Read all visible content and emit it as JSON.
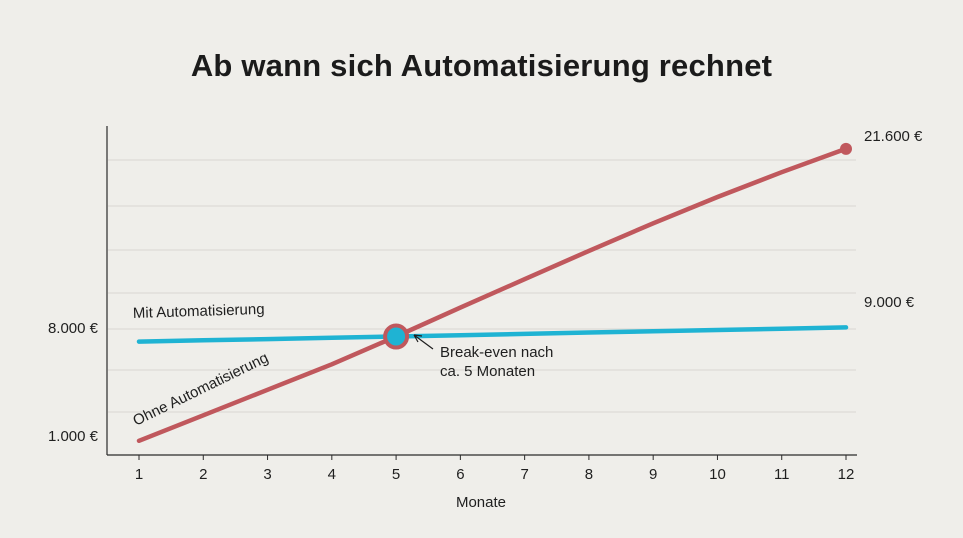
{
  "chart_data": {
    "type": "line",
    "title": "Ab wann sich Automatisierung rechnet",
    "xlabel": "Monate",
    "ylabel": "",
    "x": [
      1,
      2,
      3,
      4,
      5,
      6,
      7,
      8,
      9,
      10,
      11,
      12
    ],
    "xlim": [
      1,
      12
    ],
    "ylim": [
      0,
      23000
    ],
    "y_tick_labels": [
      "8.000 €",
      "1.000 €"
    ],
    "y_tick_values": [
      8000,
      1000
    ],
    "series": [
      {
        "name": "Mit Automatisierung",
        "color": "#1fb3d3",
        "values": [
          8000,
          8090,
          8180,
          8270,
          8360,
          8450,
          8545,
          8640,
          8730,
          8820,
          8910,
          9000
        ],
        "end_label": "9.000 €"
      },
      {
        "name": "Ohne Automatisierung",
        "color": "#c0585d",
        "values": [
          1000,
          2800,
          4600,
          6400,
          8360,
          10400,
          12400,
          14400,
          16350,
          18200,
          19950,
          21600
        ],
        "end_label": "21.600 €"
      }
    ],
    "annotation": {
      "x": 5,
      "y": 8360,
      "lines": [
        "Break-even nach",
        "ca. 5 Monaten"
      ]
    },
    "grid": true,
    "legend": "inline labels"
  }
}
